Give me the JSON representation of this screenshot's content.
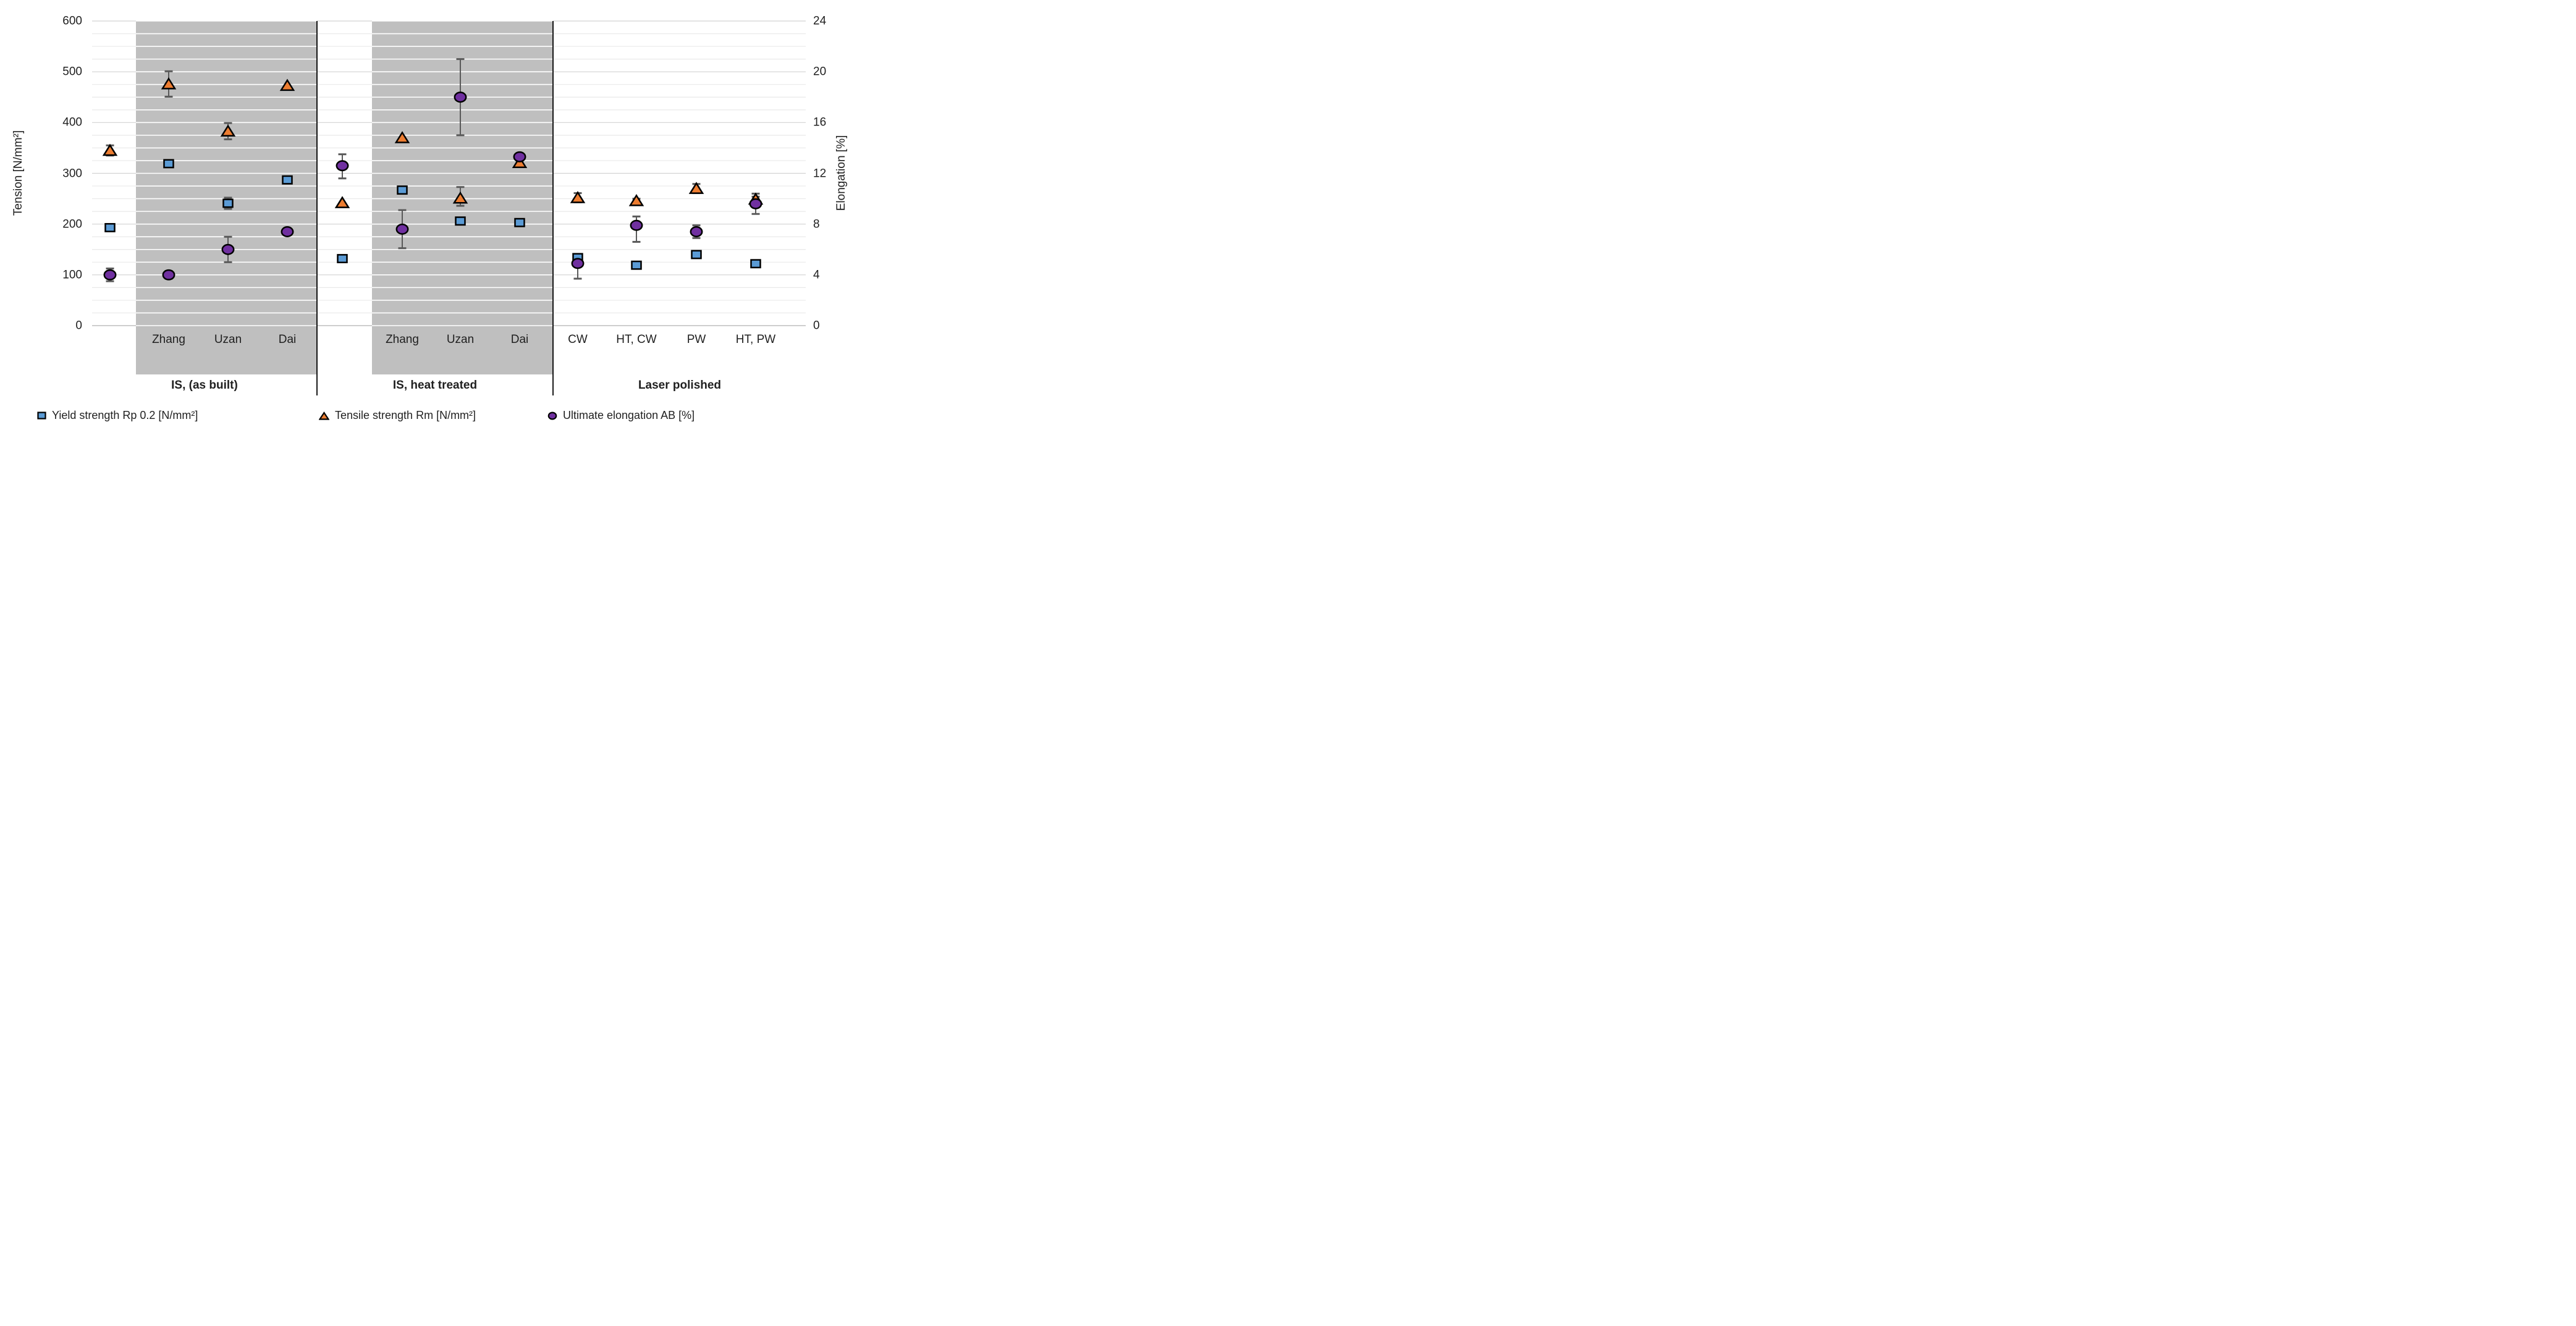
{
  "chart_data": {
    "type": "scatter",
    "left_axis": {
      "label": "Tension [N/mm²]",
      "min": 0,
      "max": 600,
      "tick_step": 100,
      "gridline_step": 25,
      "ticks": [
        "600",
        "500",
        "400",
        "300",
        "200",
        "100",
        "0"
      ]
    },
    "right_axis": {
      "label": "Elongation [%]",
      "min": 0,
      "max": 24,
      "tick_step": 4,
      "ticks": [
        "24",
        "20",
        "16",
        "12",
        "8",
        "4",
        "0"
      ]
    },
    "elongation_scale_factor": 25,
    "legend": [
      {
        "label": "Yield strength Rp 0.2 [N/mm²]",
        "marker": "square",
        "color": "#5B9BD5"
      },
      {
        "label": "Tensile strength Rm [N/mm²]",
        "marker": "triangle",
        "color": "#ED7D31"
      },
      {
        "label": "Ultimate elongation AB [%]",
        "marker": "circle",
        "color": "#7030A0"
      }
    ],
    "groups": [
      {
        "label": "IS, (as built)",
        "shaded": true,
        "columns": [
          {
            "label": "",
            "yield": 193,
            "tensile": 345,
            "tensile_err": [
              10,
              10
            ],
            "elongation": 4.0,
            "elongation_err": [
              0.5,
              0.5
            ]
          },
          {
            "label": "Zhang",
            "yield": 319,
            "tensile": 476,
            "tensile_err": [
              25,
              25
            ],
            "elongation": 4.0,
            "elongation_err": [
              0.3,
              0.3
            ]
          },
          {
            "label": "Uzan",
            "yield": 241,
            "yield_err": [
              11,
              11
            ],
            "tensile": 383,
            "tensile_err": [
              16,
              16
            ],
            "elongation": 6.0,
            "elongation_err": [
              1.0,
              1.0
            ]
          },
          {
            "label": "Dai",
            "yield": 287,
            "tensile": 473,
            "elongation": 7.4
          }
        ]
      },
      {
        "label": "IS, heat treated",
        "shaded": true,
        "columns": [
          {
            "label": "",
            "yield": 132,
            "tensile": 242,
            "elongation": 12.6,
            "elongation_err": [
              0.9,
              1.0
            ]
          },
          {
            "label": "Zhang",
            "yield": 267,
            "tensile": 370,
            "elongation": 7.6,
            "elongation_err": [
              1.5,
              1.5
            ]
          },
          {
            "label": "Uzan",
            "yield": 206,
            "tensile": 251,
            "tensile_err": [
              22,
              15
            ],
            "elongation": 18.0,
            "elongation_err": [
              3.0,
              3.0
            ]
          },
          {
            "label": "Dai",
            "yield": 203,
            "tensile": 321,
            "elongation": 13.3
          }
        ]
      },
      {
        "label": "Laser polished",
        "shaded": false,
        "columns": [
          {
            "label": "CW",
            "yield": 134,
            "tensile": 252,
            "tensile_err": [
              9,
              9
            ],
            "elongation": 4.9,
            "elongation_err": [
              0.6,
              1.2
            ]
          },
          {
            "label": "HT, CW",
            "yield": 119,
            "tensile": 246,
            "tensile_err": [
              4,
              4
            ],
            "elongation": 7.9,
            "elongation_err": [
              0.7,
              1.3
            ]
          },
          {
            "label": "PW",
            "yield": 140,
            "tensile": 270,
            "tensile_err": [
              9,
              9
            ],
            "elongation": 7.4,
            "elongation_err": [
              0.5,
              0.5
            ]
          },
          {
            "label": "HT, PW",
            "yield": 122,
            "tensile": 249,
            "tensile_err": [
              5,
              5
            ],
            "elongation": 9.6,
            "elongation_err": [
              0.8,
              0.8
            ]
          }
        ]
      }
    ],
    "colors": {
      "band": "#BFBFBF",
      "grid_minor": "#E9E9E9",
      "grid_major": "#D2D2D2",
      "grid_zero": "#BDBDBD",
      "band_gridline": "#FFFFFF",
      "error_bar": "#595959",
      "divider": "#000000",
      "marker_stroke": "#000000",
      "text": "#1F1F1F"
    }
  }
}
